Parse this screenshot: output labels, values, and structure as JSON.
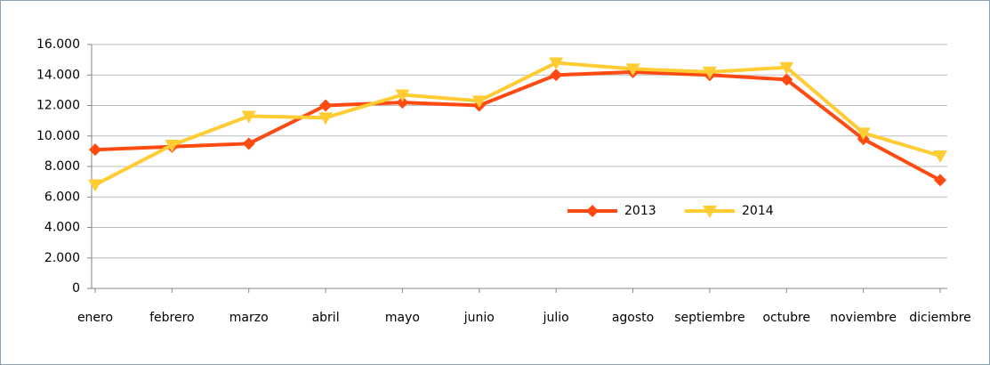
{
  "chart_data": {
    "type": "line",
    "categories": [
      "enero",
      "febrero",
      "marzo",
      "abril",
      "mayo",
      "junio",
      "julio",
      "agosto",
      "septiembre",
      "octubre",
      "noviembre",
      "diciembre"
    ],
    "series": [
      {
        "name": "2013",
        "color": "#ff4a12",
        "marker": "diamond",
        "values": [
          9100,
          9300,
          9500,
          12000,
          12200,
          12000,
          14000,
          14200,
          14000,
          13700,
          9800,
          7100
        ]
      },
      {
        "name": "2014",
        "color": "#ffcc33",
        "marker": "triangle-down",
        "values": [
          6800,
          9400,
          11300,
          11200,
          12700,
          12300,
          14800,
          14400,
          14200,
          14500,
          10200,
          8700
        ]
      }
    ],
    "ylim": [
      0,
      16000
    ],
    "yticks": [
      0,
      {
        "value": 2000,
        "label": "2.000"
      },
      {
        "value": 4000,
        "label": "4.000"
      },
      {
        "value": 6000,
        "label": "6.000"
      },
      {
        "value": 8000,
        "label": "8.000"
      },
      {
        "value": 10000,
        "label": "10.000"
      },
      {
        "value": 12000,
        "label": "12.000"
      },
      {
        "value": 14000,
        "label": "14.000"
      },
      {
        "value": 16000,
        "label": "16.000"
      }
    ],
    "grid": true
  }
}
